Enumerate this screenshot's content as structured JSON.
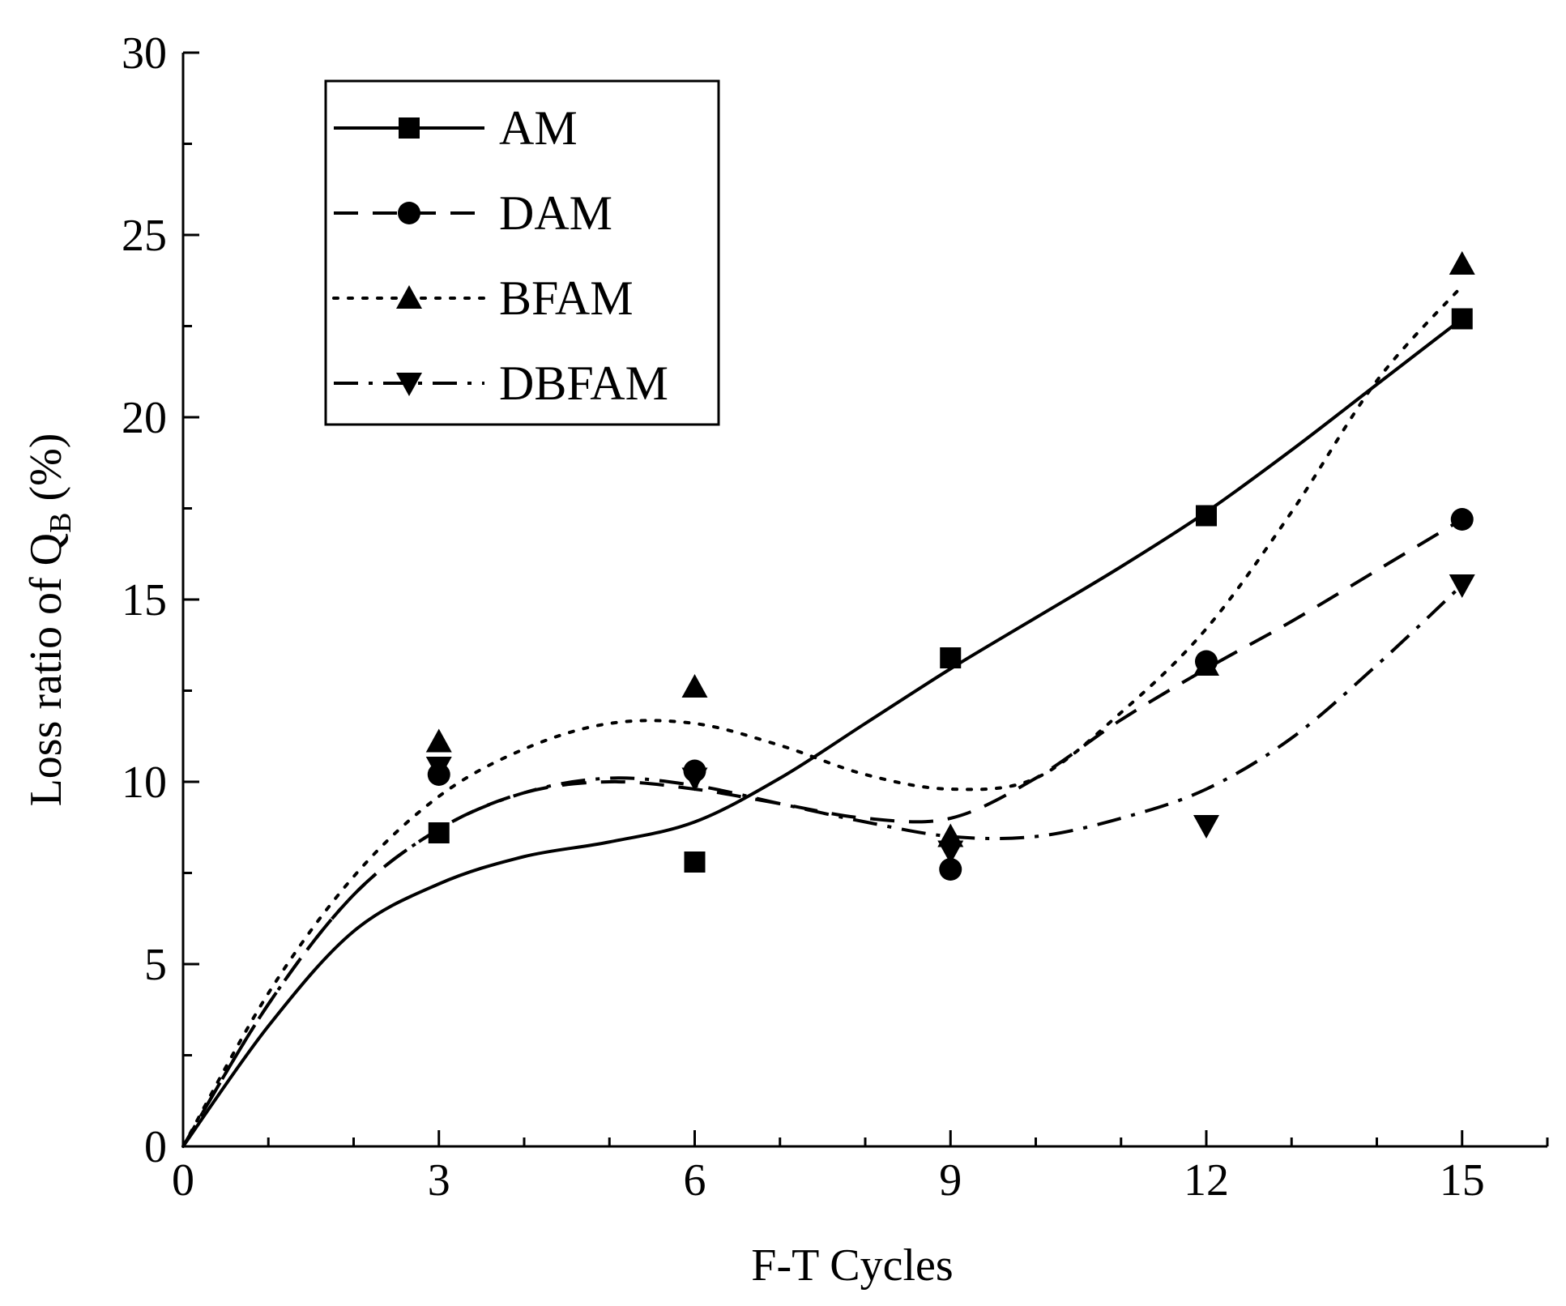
{
  "chart_data": {
    "type": "line",
    "title": "",
    "xlabel": "F-T Cycles",
    "ylabel": {
      "prefix": "Loss ratio of Q",
      "subscript": "B",
      "suffix": " (%)"
    },
    "xlim": [
      0,
      16
    ],
    "ylim": [
      0,
      30
    ],
    "xticks": [
      0,
      3,
      6,
      9,
      12,
      15
    ],
    "xtick_labels": [
      "0",
      "3",
      "6",
      "9",
      "12",
      "15"
    ],
    "yticks": [
      0,
      5,
      10,
      15,
      20,
      25,
      30
    ],
    "ytick_labels": [
      "0",
      "5",
      "10",
      "15",
      "20",
      "25",
      "30"
    ],
    "x_minor_step": 1,
    "grid": false,
    "legend_position": "top-left",
    "series": [
      {
        "name": "AM",
        "marker": "square",
        "dash": "solid",
        "x": [
          0,
          3,
          6,
          9,
          12,
          15
        ],
        "values": [
          0,
          8.6,
          7.8,
          13.4,
          17.3,
          22.7
        ],
        "fit": [
          [
            0,
            0
          ],
          [
            1,
            3.3
          ],
          [
            2,
            5.9
          ],
          [
            3,
            7.2
          ],
          [
            4,
            7.95
          ],
          [
            5,
            8.35
          ],
          [
            6,
            8.9
          ],
          [
            7,
            10.1
          ],
          [
            8,
            11.6
          ],
          [
            9,
            13.1
          ],
          [
            10,
            14.5
          ],
          [
            11,
            15.9
          ],
          [
            12,
            17.4
          ],
          [
            13,
            19.1
          ],
          [
            14,
            20.9
          ],
          [
            15,
            22.7
          ]
        ]
      },
      {
        "name": "DAM",
        "marker": "circle",
        "dash": "dashed",
        "x": [
          0,
          3,
          6,
          9,
          12,
          15
        ],
        "values": [
          0,
          10.2,
          10.3,
          7.6,
          13.3,
          17.2
        ],
        "fit": [
          [
            0,
            0
          ],
          [
            1,
            3.9
          ],
          [
            2,
            6.9
          ],
          [
            3,
            8.7
          ],
          [
            4,
            9.7
          ],
          [
            5,
            10.0
          ],
          [
            6,
            9.8
          ],
          [
            7,
            9.4
          ],
          [
            8,
            9.0
          ],
          [
            9,
            9.0
          ],
          [
            10,
            10.1
          ],
          [
            11,
            11.7
          ],
          [
            12,
            13.1
          ],
          [
            13,
            14.4
          ],
          [
            14,
            15.8
          ],
          [
            15,
            17.2
          ]
        ]
      },
      {
        "name": "BFAM",
        "marker": "triangle-up",
        "dash": "dotted",
        "x": [
          0,
          3,
          6,
          9,
          12,
          15
        ],
        "values": [
          0,
          11.1,
          12.6,
          8.5,
          13.2,
          24.2
        ],
        "fit": [
          [
            0,
            0
          ],
          [
            1,
            4.2
          ],
          [
            2,
            7.4
          ],
          [
            3,
            9.6
          ],
          [
            4,
            10.9
          ],
          [
            5,
            11.6
          ],
          [
            6,
            11.6
          ],
          [
            7,
            11.0
          ],
          [
            8,
            10.2
          ],
          [
            9,
            9.8
          ],
          [
            10,
            10.1
          ],
          [
            11,
            11.9
          ],
          [
            12,
            14.2
          ],
          [
            13,
            17.4
          ],
          [
            14,
            21.0
          ],
          [
            15,
            23.6
          ]
        ]
      },
      {
        "name": "DBFAM",
        "marker": "triangle-down",
        "dash": "dashdot",
        "x": [
          0,
          3,
          6,
          9,
          12,
          15
        ],
        "values": [
          0,
          10.4,
          10.1,
          8.1,
          8.8,
          15.4
        ],
        "fit": [
          [
            0,
            0
          ],
          [
            1,
            3.9
          ],
          [
            2,
            6.9
          ],
          [
            3,
            8.7
          ],
          [
            4,
            9.7
          ],
          [
            5,
            10.1
          ],
          [
            6,
            9.9
          ],
          [
            7,
            9.4
          ],
          [
            8,
            8.9
          ],
          [
            9,
            8.5
          ],
          [
            10,
            8.5
          ],
          [
            11,
            9.0
          ],
          [
            12,
            9.8
          ],
          [
            13,
            11.2
          ],
          [
            14,
            13.2
          ],
          [
            15,
            15.4
          ]
        ]
      }
    ]
  }
}
